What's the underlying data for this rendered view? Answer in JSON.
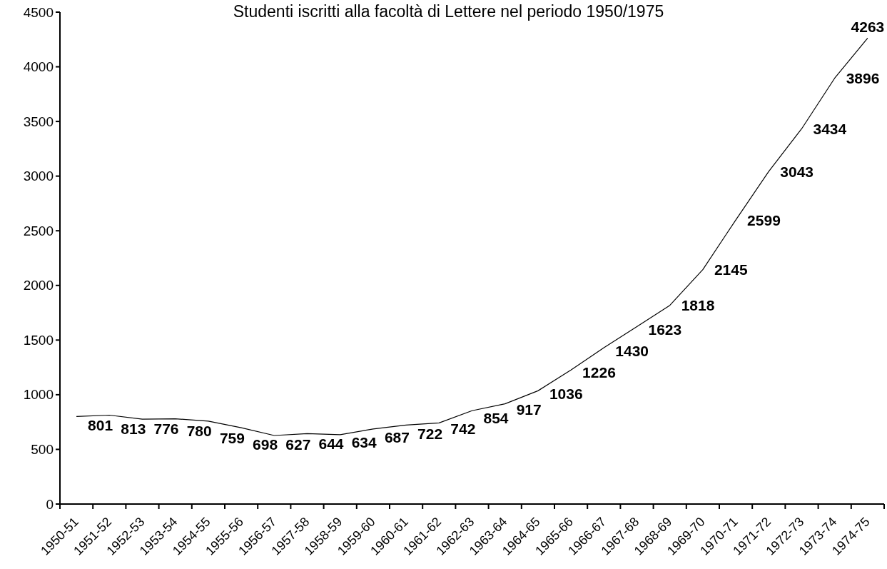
{
  "chart_data": {
    "type": "line",
    "title": "Studenti iscritti alla facoltà di Lettere nel periodo 1950/1975",
    "categories": [
      "1950-51",
      "1951-52",
      "1952-53",
      "1953-54",
      "1954-55",
      "1955-56",
      "1956-57",
      "1957-58",
      "1958-59",
      "1959-60",
      "1960-61",
      "1961-62",
      "1962-63",
      "1963-64",
      "1964-65",
      "1965-66",
      "1966-67",
      "1967-68",
      "1968-69",
      "1969-70",
      "1970-71",
      "1971-72",
      "1972-73",
      "1973-74",
      "1974-75"
    ],
    "series": [
      {
        "color": "#000000",
        "values": [
          801,
          813,
          776,
          780,
          759,
          698,
          627,
          644,
          634,
          687,
          722,
          742,
          854,
          917,
          1036,
          1226,
          1430,
          1623,
          1818,
          2145,
          2599,
          3043,
          3434,
          3896,
          4263
        ]
      }
    ],
    "ylim": [
      0,
      4500
    ],
    "yticks": [
      0,
      500,
      1000,
      1500,
      2000,
      2500,
      3000,
      3500,
      4000,
      4500
    ],
    "data_labels": true
  }
}
